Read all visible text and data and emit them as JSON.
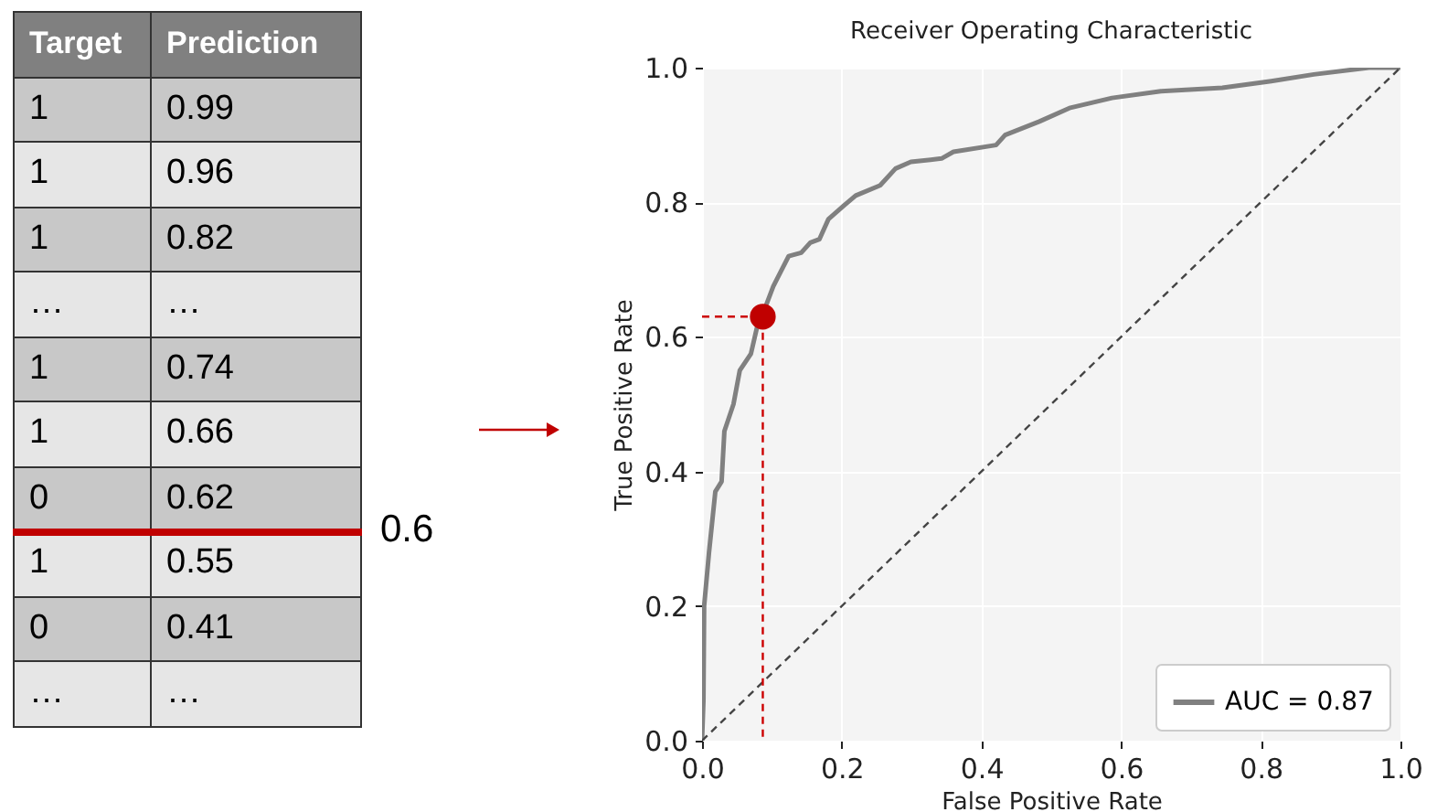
{
  "chart_data": [
    {
      "type": "other",
      "categories": [
        "Target",
        "Prediction"
      ],
      "annotations": [
        "1",
        "0.99",
        "1",
        "0.96",
        "1",
        "0.82",
        "…",
        "…",
        "1",
        "0.74",
        "1",
        "0.66",
        "0",
        "0.62",
        "1",
        "0.55",
        "0",
        "0.41",
        "…",
        "…",
        "0.6"
      ]
    },
    {
      "type": "line",
      "title": "Receiver Operating Characteristic",
      "xlabel": "False Positive Rate",
      "ylabel": "True Positive Rate",
      "xlim": [
        0,
        1
      ],
      "ylim": [
        0,
        1
      ],
      "xticks": [
        {
          "value": 0,
          "label": "0.0"
        },
        0.2,
        0.4,
        0.6,
        0.8,
        {
          "value": 1,
          "label": "1.0"
        }
      ],
      "yticks": [
        {
          "value": 0,
          "label": "0.0"
        },
        0.2,
        0.4,
        0.6,
        0.8,
        {
          "value": 1,
          "label": "1.0"
        }
      ],
      "grid": true,
      "legend": "bottom right",
      "series": [
        {
          "name": "AUC = 0.87",
          "color": "#808080",
          "type": "line",
          "line_style": "solid",
          "x": [
            0,
            0.002,
            0.003,
            0.01,
            0.019,
            0.028,
            0.032,
            0.045,
            0.054,
            0.07,
            0.08,
            0.087,
            0.102,
            0.124,
            0.142,
            0.155,
            0.168,
            0.181,
            0.203,
            0.22,
            0.255,
            0.277,
            0.299,
            0.343,
            0.36,
            0.421,
            0.434,
            0.483,
            0.526,
            0.587,
            0.657,
            0.745,
            0.815,
            0.876,
            0.955,
            1
          ],
          "values": [
            0,
            0.06,
            0.2,
            0.28,
            0.37,
            0.385,
            0.46,
            0.5,
            0.55,
            0.575,
            0.62,
            0.634,
            0.675,
            0.72,
            0.725,
            0.74,
            0.745,
            0.775,
            0.795,
            0.81,
            0.825,
            0.85,
            0.86,
            0.865,
            0.875,
            0.885,
            0.9,
            0.92,
            0.94,
            0.955,
            0.965,
            0.97,
            0.98,
            0.99,
            1,
            1
          ]
        },
        {
          "color": "#444444",
          "type": "line",
          "line_style": "dashed",
          "x": [
            0,
            1
          ],
          "values": [
            0,
            1
          ]
        },
        {
          "color": "#cc0000",
          "type": "line",
          "line_style": "dashed",
          "x": [
            0,
            0.087,
            0.087
          ],
          "values": [
            0.63,
            0.63,
            0
          ]
        },
        {
          "color": "#c00000",
          "type": "scatter",
          "x": [
            0.087
          ],
          "values": [
            0.63
          ]
        }
      ]
    }
  ]
}
